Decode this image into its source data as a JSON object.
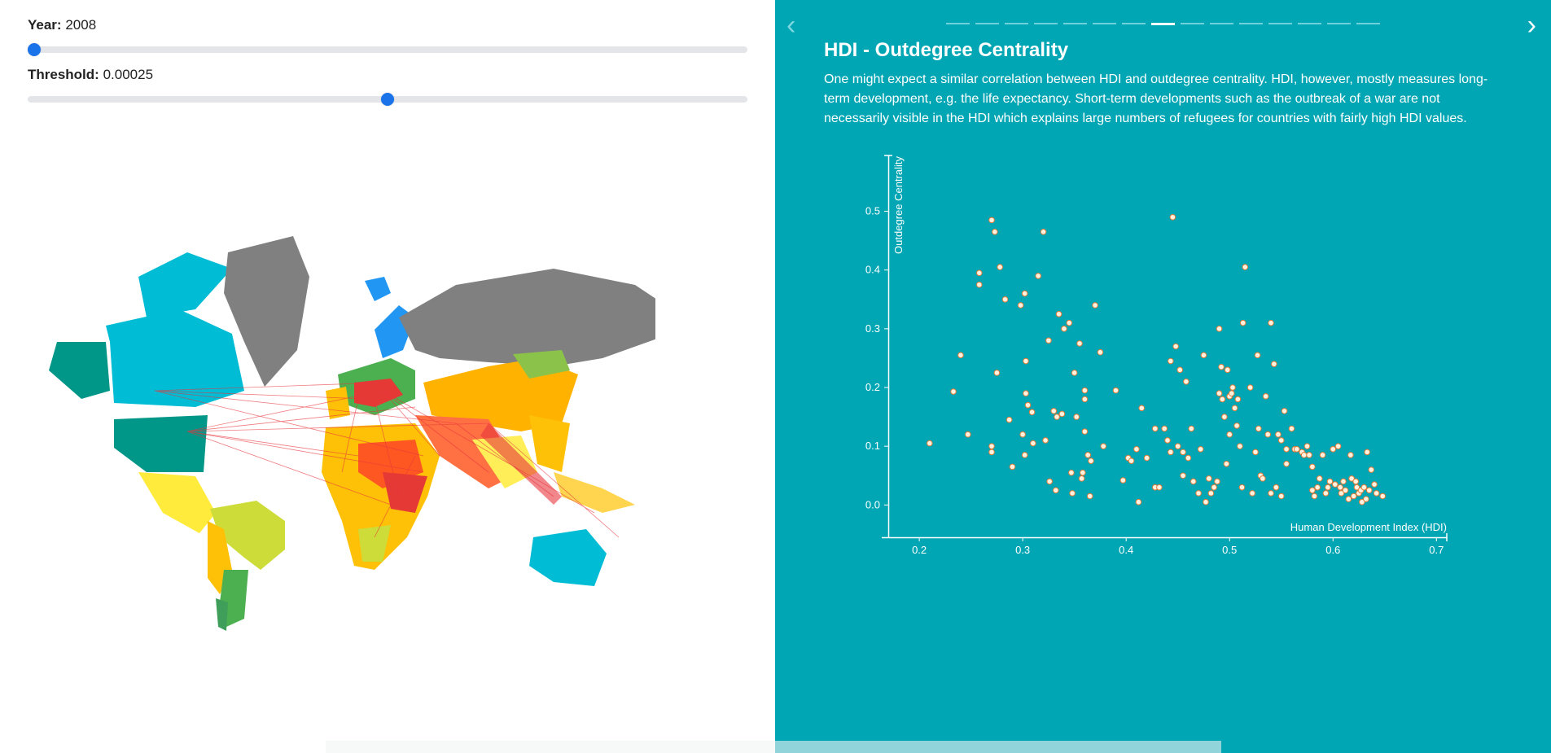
{
  "controls": {
    "year_label": "Year:",
    "year_value": "2008",
    "year_fraction": 0.0,
    "threshold_label": "Threshold:",
    "threshold_value": "0.00025",
    "threshold_fraction": 0.5
  },
  "slide": {
    "title": "HDI - Outdegree Centrality",
    "text": "One might expect a similar correlation between HDI and outdegree centrality. HDI, however, mostly measures long-term development, e.g. the life expectancy. Short-term developments such as the outbreak of a war are not necessarily visible in the HDI which explains large numbers of refugees for countries with fairly high HDI values.",
    "page_count": 15,
    "active_page": 8
  },
  "colors": {
    "panel_bg": "#00a6b4",
    "point_fill": "#fff3e0",
    "point_stroke": "#e07b39",
    "flow_line": "#e8363d"
  },
  "icons": {
    "prev": "chevron-left-icon",
    "next": "chevron-right-icon"
  },
  "chart_data": {
    "type": "scatter",
    "xlabel": "Human Development Index (HDI)",
    "ylabel": "Outdegree Centrality",
    "xlim": [
      0.17,
      0.71
    ],
    "ylim": [
      -0.055,
      0.595
    ],
    "x_ticks": [
      "0.2",
      "0.3",
      "0.4",
      "0.5",
      "0.6",
      "0.7"
    ],
    "y_ticks": [
      "0.0",
      "0.1",
      "0.2",
      "0.3",
      "0.4",
      "0.5"
    ],
    "points": [
      [
        0.21,
        0.105
      ],
      [
        0.233,
        0.193
      ],
      [
        0.24,
        0.255
      ],
      [
        0.247,
        0.12
      ],
      [
        0.258,
        0.395
      ],
      [
        0.258,
        0.375
      ],
      [
        0.27,
        0.485
      ],
      [
        0.273,
        0.465
      ],
      [
        0.275,
        0.225
      ],
      [
        0.278,
        0.405
      ],
      [
        0.283,
        0.35
      ],
      [
        0.287,
        0.145
      ],
      [
        0.29,
        0.065
      ],
      [
        0.27,
        0.1
      ],
      [
        0.27,
        0.09
      ],
      [
        0.298,
        0.34
      ],
      [
        0.3,
        0.12
      ],
      [
        0.302,
        0.36
      ],
      [
        0.303,
        0.245
      ],
      [
        0.303,
        0.19
      ],
      [
        0.302,
        0.085
      ],
      [
        0.305,
        0.17
      ],
      [
        0.309,
        0.158
      ],
      [
        0.31,
        0.105
      ],
      [
        0.315,
        0.39
      ],
      [
        0.32,
        0.465
      ],
      [
        0.322,
        0.11
      ],
      [
        0.325,
        0.28
      ],
      [
        0.326,
        0.04
      ],
      [
        0.33,
        0.16
      ],
      [
        0.332,
        0.025
      ],
      [
        0.333,
        0.15
      ],
      [
        0.335,
        0.325
      ],
      [
        0.338,
        0.155
      ],
      [
        0.34,
        0.3
      ],
      [
        0.345,
        0.31
      ],
      [
        0.347,
        0.055
      ],
      [
        0.348,
        0.02
      ],
      [
        0.35,
        0.225
      ],
      [
        0.352,
        0.15
      ],
      [
        0.355,
        0.275
      ],
      [
        0.357,
        0.045
      ],
      [
        0.358,
        0.055
      ],
      [
        0.36,
        0.125
      ],
      [
        0.36,
        0.195
      ],
      [
        0.36,
        0.18
      ],
      [
        0.363,
        0.085
      ],
      [
        0.366,
        0.075
      ],
      [
        0.37,
        0.34
      ],
      [
        0.375,
        0.26
      ],
      [
        0.378,
        0.1
      ],
      [
        0.365,
        0.015
      ],
      [
        0.39,
        0.195
      ],
      [
        0.397,
        0.042
      ],
      [
        0.402,
        0.08
      ],
      [
        0.405,
        0.075
      ],
      [
        0.41,
        0.095
      ],
      [
        0.412,
        0.005
      ],
      [
        0.415,
        0.165
      ],
      [
        0.42,
        0.08
      ],
      [
        0.428,
        0.13
      ],
      [
        0.428,
        0.03
      ],
      [
        0.432,
        0.03
      ],
      [
        0.437,
        0.13
      ],
      [
        0.44,
        0.11
      ],
      [
        0.443,
        0.09
      ],
      [
        0.443,
        0.245
      ],
      [
        0.445,
        0.49
      ],
      [
        0.448,
        0.27
      ],
      [
        0.45,
        0.1
      ],
      [
        0.452,
        0.23
      ],
      [
        0.455,
        0.09
      ],
      [
        0.455,
        0.05
      ],
      [
        0.458,
        0.21
      ],
      [
        0.46,
        0.08
      ],
      [
        0.463,
        0.13
      ],
      [
        0.465,
        0.04
      ],
      [
        0.47,
        0.02
      ],
      [
        0.472,
        0.095
      ],
      [
        0.475,
        0.255
      ],
      [
        0.477,
        0.005
      ],
      [
        0.48,
        0.045
      ],
      [
        0.482,
        0.02
      ],
      [
        0.485,
        0.03
      ],
      [
        0.488,
        0.04
      ],
      [
        0.49,
        0.19
      ],
      [
        0.49,
        0.3
      ],
      [
        0.492,
        0.235
      ],
      [
        0.493,
        0.18
      ],
      [
        0.495,
        0.15
      ],
      [
        0.497,
        0.07
      ],
      [
        0.498,
        0.23
      ],
      [
        0.5,
        0.12
      ],
      [
        0.5,
        0.185
      ],
      [
        0.502,
        0.19
      ],
      [
        0.503,
        0.2
      ],
      [
        0.505,
        0.165
      ],
      [
        0.507,
        0.135
      ],
      [
        0.508,
        0.18
      ],
      [
        0.51,
        0.1
      ],
      [
        0.512,
        0.03
      ],
      [
        0.513,
        0.31
      ],
      [
        0.515,
        0.405
      ],
      [
        0.52,
        0.2
      ],
      [
        0.522,
        0.02
      ],
      [
        0.525,
        0.09
      ],
      [
        0.527,
        0.255
      ],
      [
        0.528,
        0.13
      ],
      [
        0.53,
        0.05
      ],
      [
        0.532,
        0.045
      ],
      [
        0.535,
        0.185
      ],
      [
        0.537,
        0.12
      ],
      [
        0.54,
        0.31
      ],
      [
        0.54,
        0.02
      ],
      [
        0.543,
        0.24
      ],
      [
        0.545,
        0.03
      ],
      [
        0.547,
        0.12
      ],
      [
        0.55,
        0.11
      ],
      [
        0.55,
        0.015
      ],
      [
        0.553,
        0.16
      ],
      [
        0.555,
        0.07
      ],
      [
        0.555,
        0.095
      ],
      [
        0.56,
        0.13
      ],
      [
        0.563,
        0.095
      ],
      [
        0.565,
        0.095
      ],
      [
        0.57,
        0.09
      ],
      [
        0.572,
        0.085
      ],
      [
        0.575,
        0.1
      ],
      [
        0.577,
        0.085
      ],
      [
        0.58,
        0.065
      ],
      [
        0.58,
        0.025
      ],
      [
        0.582,
        0.015
      ],
      [
        0.585,
        0.03
      ],
      [
        0.587,
        0.045
      ],
      [
        0.59,
        0.085
      ],
      [
        0.593,
        0.02
      ],
      [
        0.595,
        0.03
      ],
      [
        0.597,
        0.04
      ],
      [
        0.6,
        0.095
      ],
      [
        0.602,
        0.035
      ],
      [
        0.605,
        0.1
      ],
      [
        0.607,
        0.03
      ],
      [
        0.608,
        0.02
      ],
      [
        0.61,
        0.04
      ],
      [
        0.612,
        0.025
      ],
      [
        0.615,
        0.01
      ],
      [
        0.617,
        0.085
      ],
      [
        0.618,
        0.045
      ],
      [
        0.62,
        0.015
      ],
      [
        0.622,
        0.04
      ],
      [
        0.623,
        0.03
      ],
      [
        0.625,
        0.02
      ],
      [
        0.627,
        0.025
      ],
      [
        0.628,
        0.005
      ],
      [
        0.63,
        0.03
      ],
      [
        0.632,
        0.01
      ],
      [
        0.633,
        0.09
      ],
      [
        0.635,
        0.025
      ],
      [
        0.637,
        0.06
      ],
      [
        0.64,
        0.035
      ],
      [
        0.642,
        0.02
      ],
      [
        0.648,
        0.015
      ]
    ],
    "grid": false,
    "legend": "none"
  }
}
